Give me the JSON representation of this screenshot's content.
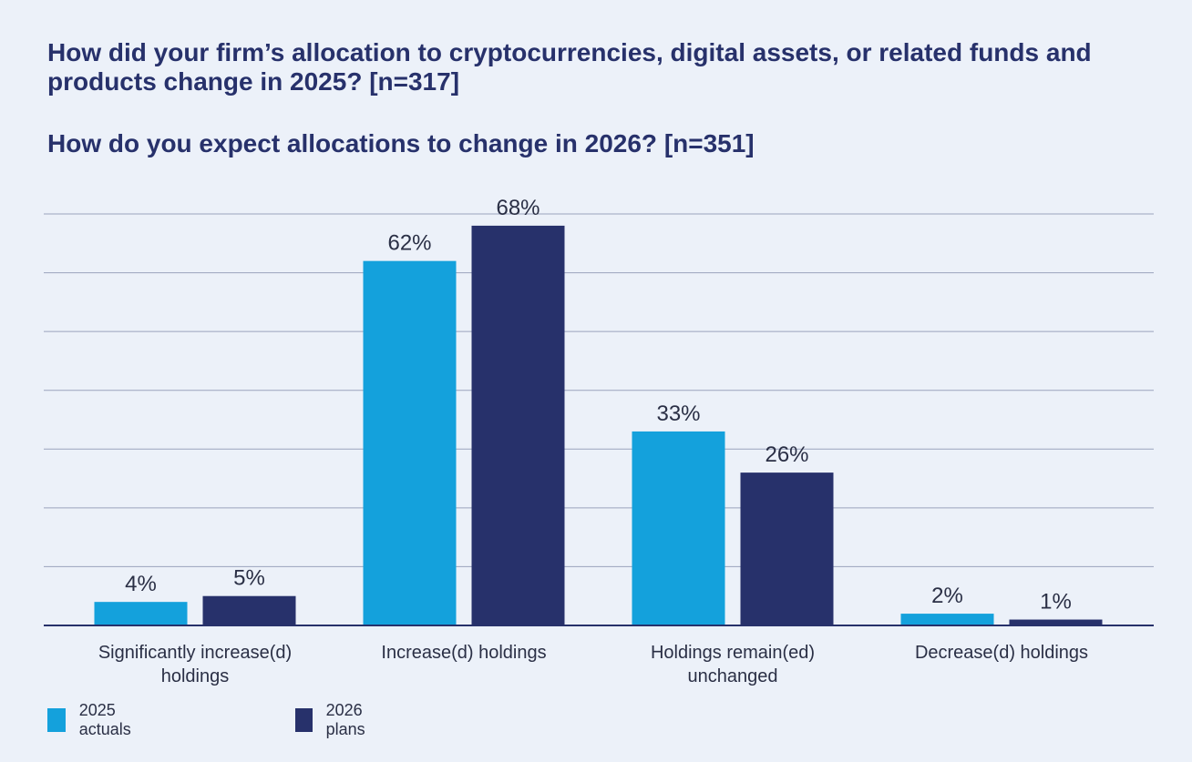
{
  "title": "How did your firm’s allocation to cryptocurrencies, digital assets, or related funds and products change in 2025? [n=317]",
  "subtitle": "How do you expect allocations to change in 2026? [n=351]",
  "colors": {
    "series_2025": "#14a1dc",
    "series_2026": "#27316b"
  },
  "chart_data": {
    "type": "bar",
    "categories": [
      "Significantly increase(d) holdings",
      "Increase(d) holdings",
      "Holdings remain(ed) unchanged",
      "Decrease(d) holdings"
    ],
    "series": [
      {
        "name": "2025 actuals",
        "values": [
          4,
          62,
          33,
          2
        ],
        "labels": [
          "4%",
          "62%",
          "33%",
          "2%"
        ]
      },
      {
        "name": "2026 plans",
        "values": [
          5,
          68,
          26,
          1
        ],
        "labels": [
          "5%",
          "68%",
          "26%",
          "1%"
        ]
      }
    ],
    "ylim": [
      0,
      70
    ],
    "grid": true,
    "legend": "bottom-left",
    "xlabel": "",
    "ylabel": ""
  }
}
